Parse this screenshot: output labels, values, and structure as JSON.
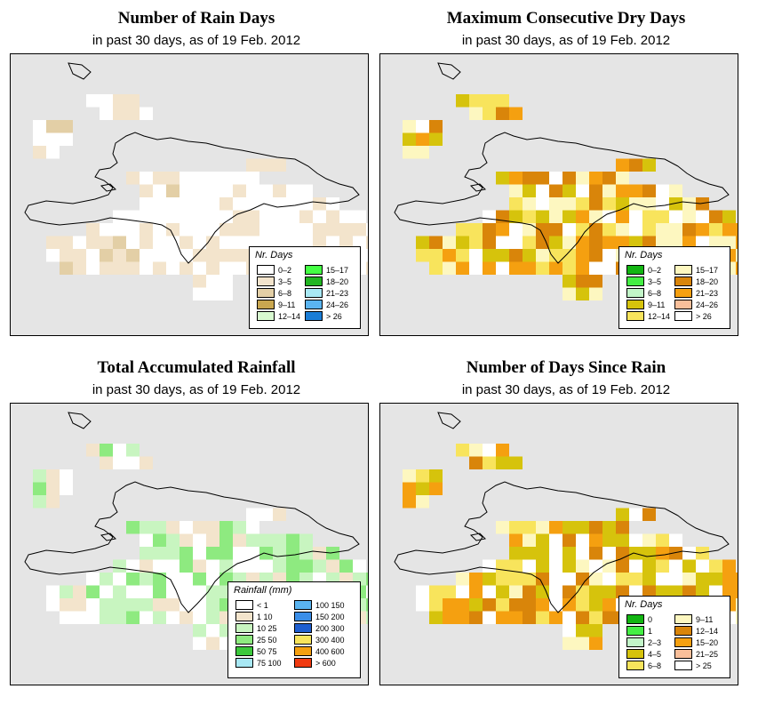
{
  "panels": [
    {
      "id": "rain-days",
      "title": "Number of Rain Days",
      "subtitle": "in past 30 days, as of  19 Feb. 2012",
      "legend": {
        "title": "Nr. Days",
        "items": [
          {
            "label": "0–2",
            "color": "#ffffff"
          },
          {
            "label": "3–5",
            "color": "#f3e4cc"
          },
          {
            "label": "6–8",
            "color": "#e3cfa6"
          },
          {
            "label": "9–11",
            "color": "#c9a750"
          },
          {
            "label": "12–14",
            "color": "#d8fad0"
          },
          {
            "label": "15–17",
            "color": "#44ff44"
          },
          {
            "label": "18–20",
            "color": "#22b522"
          },
          {
            "label": "21–23",
            "color": "#a8e8f4"
          },
          {
            "label": "24–26",
            "color": "#5ab4f0"
          },
          {
            "label": "> 26",
            "color": "#1a7dd6"
          }
        ]
      }
    },
    {
      "id": "max-dry-days",
      "title": "Maximum Consecutive Dry Days",
      "subtitle": "in past 30 days, as of  19 Feb. 2012",
      "legend": {
        "title": "Nr. Days",
        "items": [
          {
            "label": "0–2",
            "color": "#12b512"
          },
          {
            "label": "3–5",
            "color": "#44ee44"
          },
          {
            "label": "6–8",
            "color": "#c2f5c8"
          },
          {
            "label": "9–11",
            "color": "#d6c30c"
          },
          {
            "label": "12–14",
            "color": "#f8e45c"
          },
          {
            "label": "15–17",
            "color": "#fdf7c0"
          },
          {
            "label": "18–20",
            "color": "#d9850a"
          },
          {
            "label": "21–23",
            "color": "#f5a010"
          },
          {
            "label": "24–26",
            "color": "#f9bf9a"
          },
          {
            "label": "> 26",
            "color": "#ffffff"
          }
        ]
      }
    },
    {
      "id": "total-rainfall",
      "title": "Total Accumulated Rainfall",
      "subtitle": "in past 30 days, as of  19 Feb. 2012",
      "legend": {
        "title": "Rainfall (mm)",
        "items": [
          {
            "label": "< 1",
            "color": "#ffffff"
          },
          {
            "label": "1    10",
            "color": "#f3e4cc"
          },
          {
            "label": "10    25",
            "color": "#c8f5c0"
          },
          {
            "label": "25    50",
            "color": "#8eea80"
          },
          {
            "label": "50    75",
            "color": "#3cc83c"
          },
          {
            "label": "75    100",
            "color": "#a8e8f4"
          },
          {
            "label": "100    150",
            "color": "#5ab4f0"
          },
          {
            "label": "150    200",
            "color": "#3a8ee8"
          },
          {
            "label": "200    300",
            "color": "#1f5fd0"
          },
          {
            "label": "300    400",
            "color": "#f8e45c"
          },
          {
            "label": "400    600",
            "color": "#f5a010"
          },
          {
            "label": "> 600",
            "color": "#f03a10"
          }
        ]
      }
    },
    {
      "id": "days-since-rain",
      "title": "Number of Days Since Rain",
      "subtitle": "in past 30 days, as of  19 Feb. 2012",
      "legend": {
        "title": "Nr. Days",
        "items": [
          {
            "label": "0",
            "color": "#12b512"
          },
          {
            "label": "1",
            "color": "#44ee44"
          },
          {
            "label": "2–3",
            "color": "#c2f5c8"
          },
          {
            "label": "4–5",
            "color": "#d6c30c"
          },
          {
            "label": "6–8",
            "color": "#f8e45c"
          },
          {
            "label": "9–11",
            "color": "#fdf7c0"
          },
          {
            "label": "12–14",
            "color": "#d9850a"
          },
          {
            "label": "15–20",
            "color": "#f5a010"
          },
          {
            "label": "21–25",
            "color": "#f9bf9a"
          },
          {
            "label": "> 25",
            "color": "#ffffff"
          }
        ]
      }
    }
  ]
}
